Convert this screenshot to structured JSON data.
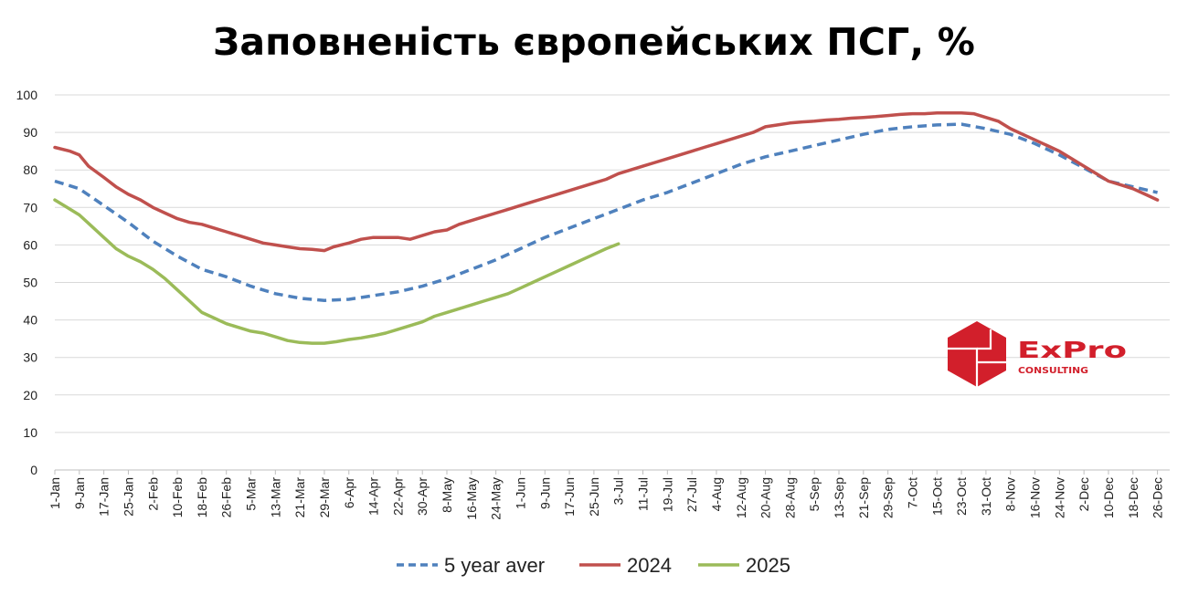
{
  "chart_data": {
    "type": "line",
    "title": "Заповненість європейських ПСГ, %",
    "xlabel": "",
    "ylabel": "",
    "ylim": [
      0,
      100
    ],
    "yticks": [
      0,
      10,
      20,
      30,
      40,
      50,
      60,
      70,
      80,
      90,
      100
    ],
    "xtick_labels": [
      "1-Jan",
      "9-Jan",
      "17-Jan",
      "25-Jan",
      "2-Feb",
      "10-Feb",
      "18-Feb",
      "26-Feb",
      "5-Mar",
      "13-Mar",
      "21-Mar",
      "29-Mar",
      "6-Apr",
      "14-Apr",
      "22-Apr",
      "30-Apr",
      "8-May",
      "16-May",
      "24-May",
      "1-Jun",
      "9-Jun",
      "17-Jun",
      "25-Jun",
      "3-Jul",
      "11-Jul",
      "19-Jul",
      "27-Jul",
      "4-Aug",
      "12-Aug",
      "20-Aug",
      "28-Aug",
      "5-Sep",
      "13-Sep",
      "21-Sep",
      "29-Sep",
      "7-Oct",
      "15-Oct",
      "23-Oct",
      "31-Oct",
      "8-Nov",
      "16-Nov",
      "24-Nov",
      "2-Dec",
      "10-Dec",
      "18-Dec",
      "26-Dec"
    ],
    "grid": true,
    "legend_position": "bottom",
    "series": [
      {
        "name": "5 year aver",
        "color": "#4f81bd",
        "dash": true,
        "points": [
          [
            1,
            77
          ],
          [
            9,
            75
          ],
          [
            17,
            70.5
          ],
          [
            25,
            66
          ],
          [
            33,
            61
          ],
          [
            41,
            57
          ],
          [
            49,
            53.5
          ],
          [
            57,
            51.5
          ],
          [
            65,
            49
          ],
          [
            73,
            47
          ],
          [
            81,
            45.8
          ],
          [
            89,
            45.2
          ],
          [
            97,
            45.5
          ],
          [
            105,
            46.5
          ],
          [
            113,
            47.5
          ],
          [
            121,
            49
          ],
          [
            129,
            51
          ],
          [
            137,
            53.5
          ],
          [
            145,
            56
          ],
          [
            153,
            59
          ],
          [
            161,
            62
          ],
          [
            169,
            64.5
          ],
          [
            177,
            67
          ],
          [
            185,
            69.5
          ],
          [
            193,
            72
          ],
          [
            201,
            74
          ],
          [
            209,
            76.5
          ],
          [
            217,
            79
          ],
          [
            225,
            81.5
          ],
          [
            233,
            83.5
          ],
          [
            241,
            85
          ],
          [
            249,
            86.5
          ],
          [
            257,
            88
          ],
          [
            265,
            89.5
          ],
          [
            273,
            90.8
          ],
          [
            281,
            91.5
          ],
          [
            289,
            92
          ],
          [
            297,
            92.2
          ],
          [
            305,
            91
          ],
          [
            313,
            89.5
          ],
          [
            321,
            87
          ],
          [
            329,
            84
          ],
          [
            337,
            80.5
          ],
          [
            345,
            77
          ],
          [
            353,
            75.5
          ],
          [
            361,
            74
          ]
        ]
      },
      {
        "name": "2024",
        "color": "#c0504d",
        "dash": false,
        "points": [
          [
            1,
            86
          ],
          [
            6,
            85
          ],
          [
            9,
            84
          ],
          [
            12,
            81
          ],
          [
            17,
            78
          ],
          [
            21,
            75.5
          ],
          [
            25,
            73.5
          ],
          [
            29,
            72
          ],
          [
            33,
            70
          ],
          [
            37,
            68.5
          ],
          [
            41,
            67
          ],
          [
            45,
            66
          ],
          [
            49,
            65.5
          ],
          [
            53,
            64.5
          ],
          [
            57,
            63.5
          ],
          [
            61,
            62.5
          ],
          [
            65,
            61.5
          ],
          [
            69,
            60.5
          ],
          [
            73,
            60
          ],
          [
            77,
            59.5
          ],
          [
            81,
            59
          ],
          [
            85,
            58.8
          ],
          [
            89,
            58.5
          ],
          [
            92,
            59.5
          ],
          [
            97,
            60.5
          ],
          [
            101,
            61.5
          ],
          [
            105,
            62
          ],
          [
            109,
            62
          ],
          [
            113,
            62
          ],
          [
            117,
            61.5
          ],
          [
            121,
            62.5
          ],
          [
            125,
            63.5
          ],
          [
            129,
            64
          ],
          [
            133,
            65.5
          ],
          [
            137,
            66.5
          ],
          [
            141,
            67.5
          ],
          [
            145,
            68.5
          ],
          [
            149,
            69.5
          ],
          [
            153,
            70.5
          ],
          [
            157,
            71.5
          ],
          [
            161,
            72.5
          ],
          [
            165,
            73.5
          ],
          [
            169,
            74.5
          ],
          [
            173,
            75.5
          ],
          [
            177,
            76.5
          ],
          [
            181,
            77.5
          ],
          [
            185,
            79
          ],
          [
            189,
            80
          ],
          [
            193,
            81
          ],
          [
            197,
            82
          ],
          [
            201,
            83
          ],
          [
            205,
            84
          ],
          [
            209,
            85
          ],
          [
            213,
            86
          ],
          [
            217,
            87
          ],
          [
            221,
            88
          ],
          [
            225,
            89
          ],
          [
            229,
            90
          ],
          [
            233,
            91.5
          ],
          [
            237,
            92
          ],
          [
            241,
            92.5
          ],
          [
            245,
            92.8
          ],
          [
            249,
            93
          ],
          [
            253,
            93.3
          ],
          [
            257,
            93.5
          ],
          [
            261,
            93.8
          ],
          [
            265,
            94
          ],
          [
            269,
            94.2
          ],
          [
            273,
            94.5
          ],
          [
            277,
            94.8
          ],
          [
            281,
            95
          ],
          [
            285,
            95
          ],
          [
            289,
            95.2
          ],
          [
            293,
            95.2
          ],
          [
            297,
            95.2
          ],
          [
            301,
            95
          ],
          [
            305,
            94
          ],
          [
            309,
            93
          ],
          [
            313,
            91
          ],
          [
            317,
            89.5
          ],
          [
            321,
            88
          ],
          [
            325,
            86.5
          ],
          [
            329,
            85
          ],
          [
            333,
            83
          ],
          [
            337,
            81
          ],
          [
            341,
            79
          ],
          [
            345,
            77
          ],
          [
            349,
            76
          ],
          [
            353,
            75
          ],
          [
            357,
            73.5
          ],
          [
            361,
            72
          ]
        ]
      },
      {
        "name": "2025",
        "color": "#9bbb59",
        "dash": false,
        "points": [
          [
            1,
            72
          ],
          [
            5,
            70
          ],
          [
            9,
            68
          ],
          [
            13,
            65
          ],
          [
            17,
            62
          ],
          [
            21,
            59
          ],
          [
            25,
            57
          ],
          [
            29,
            55.5
          ],
          [
            33,
            53.5
          ],
          [
            37,
            51
          ],
          [
            41,
            48
          ],
          [
            45,
            45
          ],
          [
            49,
            42
          ],
          [
            53,
            40.5
          ],
          [
            57,
            39
          ],
          [
            61,
            38
          ],
          [
            65,
            37
          ],
          [
            69,
            36.5
          ],
          [
            73,
            35.5
          ],
          [
            77,
            34.5
          ],
          [
            81,
            34
          ],
          [
            85,
            33.8
          ],
          [
            89,
            33.8
          ],
          [
            93,
            34.2
          ],
          [
            97,
            34.8
          ],
          [
            101,
            35.2
          ],
          [
            105,
            35.8
          ],
          [
            109,
            36.5
          ],
          [
            113,
            37.5
          ],
          [
            117,
            38.5
          ],
          [
            121,
            39.5
          ],
          [
            125,
            41
          ],
          [
            129,
            42
          ],
          [
            133,
            43
          ],
          [
            137,
            44
          ],
          [
            141,
            45
          ],
          [
            145,
            46
          ],
          [
            149,
            47
          ],
          [
            153,
            48.5
          ],
          [
            157,
            50
          ],
          [
            161,
            51.5
          ],
          [
            165,
            53
          ],
          [
            169,
            54.5
          ],
          [
            173,
            56
          ],
          [
            177,
            57.5
          ],
          [
            181,
            59
          ],
          [
            185,
            60.3
          ]
        ]
      }
    ]
  },
  "logo": {
    "name": "ExPro",
    "sub": "CONSULTING"
  }
}
